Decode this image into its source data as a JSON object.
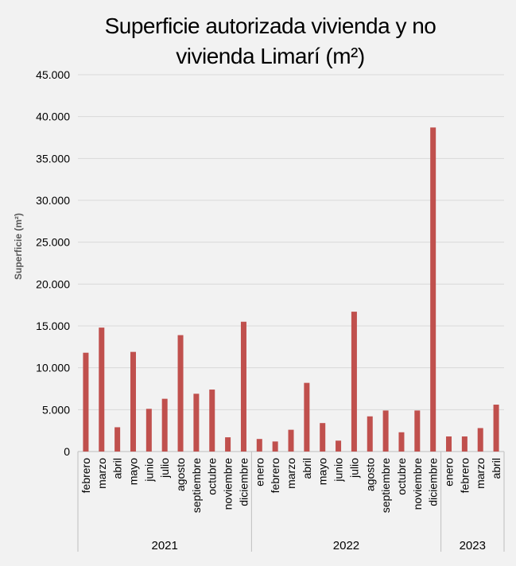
{
  "chart_data": {
    "type": "bar",
    "title_lines": [
      "Superficie autorizada vivienda y no",
      "vivienda Limarí (m²)"
    ],
    "title": "Superficie autorizada vivienda y no vivienda Limarí (m²)",
    "xlabel": "",
    "ylabel": "Superficie  (m²)",
    "ylim": [
      0,
      45000
    ],
    "yticks": [
      0,
      5000,
      10000,
      15000,
      20000,
      25000,
      30000,
      35000,
      40000,
      45000
    ],
    "ytick_labels": [
      "0",
      "5.000",
      "10.000",
      "15.000",
      "20.000",
      "25.000",
      "30.000",
      "35.000",
      "40.000",
      "45.000"
    ],
    "grid": true,
    "bar_color": "#c0504d",
    "groups": [
      {
        "year": "2021",
        "months": [
          "febrero",
          "marzo",
          "abril",
          "mayo",
          "junio",
          "julio",
          "agosto",
          "septiembre",
          "octubre",
          "noviembre",
          "diciembre"
        ]
      },
      {
        "year": "2022",
        "months": [
          "enero",
          "febrero",
          "marzo",
          "abril",
          "mayo",
          "junio",
          "julio",
          "agosto",
          "septiembre",
          "octubre",
          "noviembre",
          "diciembre"
        ]
      },
      {
        "year": "2023",
        "months": [
          "enero",
          "febrero",
          "marzo",
          "abril"
        ]
      }
    ],
    "values": [
      11800,
      14800,
      2900,
      11900,
      5100,
      6300,
      13900,
      6900,
      7400,
      1700,
      15500,
      1500,
      1200,
      2600,
      8200,
      3400,
      1300,
      16700,
      4200,
      4900,
      2300,
      4900,
      38700,
      1800,
      1800,
      2800,
      5600
    ]
  }
}
